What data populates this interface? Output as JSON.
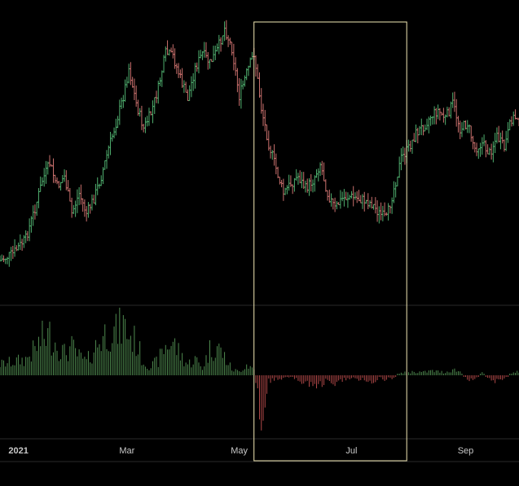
{
  "chart_data": {
    "type": "ohlc",
    "x_axis": {
      "ticks": [
        {
          "label": "2021",
          "date": "2021-01-01"
        },
        {
          "label": "Mar",
          "date": "2021-03-01"
        },
        {
          "label": "May",
          "date": "2021-05-01"
        },
        {
          "label": "Jul",
          "date": "2021-07-01"
        },
        {
          "label": "Sep",
          "date": "2021-09-01"
        }
      ],
      "range": [
        "2020-12-22",
        "2021-09-30"
      ]
    },
    "highlight": {
      "start": "2021-05-09",
      "end": "2021-07-31"
    },
    "price_series": [
      {
        "date": "2020-12-22",
        "v": 252
      },
      {
        "date": "2020-12-29",
        "v": 245
      },
      {
        "date": "2021-01-05",
        "v": 230
      },
      {
        "date": "2021-01-10",
        "v": 200
      },
      {
        "date": "2021-01-14",
        "v": 172
      },
      {
        "date": "2021-01-18",
        "v": 155
      },
      {
        "date": "2021-01-22",
        "v": 178
      },
      {
        "date": "2021-01-26",
        "v": 168
      },
      {
        "date": "2021-01-30",
        "v": 205
      },
      {
        "date": "2021-02-03",
        "v": 185
      },
      {
        "date": "2021-02-07",
        "v": 205
      },
      {
        "date": "2021-02-11",
        "v": 190
      },
      {
        "date": "2021-02-15",
        "v": 168
      },
      {
        "date": "2021-02-19",
        "v": 140
      },
      {
        "date": "2021-02-23",
        "v": 115
      },
      {
        "date": "2021-02-27",
        "v": 88
      },
      {
        "date": "2021-03-02",
        "v": 60
      },
      {
        "date": "2021-03-06",
        "v": 95
      },
      {
        "date": "2021-03-10",
        "v": 120
      },
      {
        "date": "2021-03-14",
        "v": 105
      },
      {
        "date": "2021-03-18",
        "v": 80
      },
      {
        "date": "2021-03-22",
        "v": 45
      },
      {
        "date": "2021-03-26",
        "v": 48
      },
      {
        "date": "2021-03-30",
        "v": 70
      },
      {
        "date": "2021-04-03",
        "v": 90
      },
      {
        "date": "2021-04-07",
        "v": 60
      },
      {
        "date": "2021-04-11",
        "v": 45
      },
      {
        "date": "2021-04-15",
        "v": 55
      },
      {
        "date": "2021-04-19",
        "v": 42
      },
      {
        "date": "2021-04-23",
        "v": 20
      },
      {
        "date": "2021-04-27",
        "v": 40
      },
      {
        "date": "2021-05-01",
        "v": 88
      },
      {
        "date": "2021-05-05",
        "v": 65
      },
      {
        "date": "2021-05-09",
        "v": 45
      },
      {
        "date": "2021-05-13",
        "v": 100
      },
      {
        "date": "2021-05-17",
        "v": 135
      },
      {
        "date": "2021-05-21",
        "v": 160
      },
      {
        "date": "2021-05-25",
        "v": 185
      },
      {
        "date": "2021-05-29",
        "v": 175
      },
      {
        "date": "2021-06-02",
        "v": 168
      },
      {
        "date": "2021-06-06",
        "v": 180
      },
      {
        "date": "2021-06-10",
        "v": 172
      },
      {
        "date": "2021-06-14",
        "v": 155
      },
      {
        "date": "2021-06-18",
        "v": 185
      },
      {
        "date": "2021-06-22",
        "v": 200
      },
      {
        "date": "2021-06-26",
        "v": 190
      },
      {
        "date": "2021-06-30",
        "v": 188
      },
      {
        "date": "2021-07-04",
        "v": 190
      },
      {
        "date": "2021-07-08",
        "v": 192
      },
      {
        "date": "2021-07-12",
        "v": 195
      },
      {
        "date": "2021-07-16",
        "v": 205
      },
      {
        "date": "2021-07-20",
        "v": 210
      },
      {
        "date": "2021-07-24",
        "v": 180
      },
      {
        "date": "2021-07-28",
        "v": 150
      },
      {
        "date": "2021-08-01",
        "v": 140
      },
      {
        "date": "2021-08-05",
        "v": 125
      },
      {
        "date": "2021-08-09",
        "v": 118
      },
      {
        "date": "2021-08-13",
        "v": 108
      },
      {
        "date": "2021-08-17",
        "v": 102
      },
      {
        "date": "2021-08-21",
        "v": 110
      },
      {
        "date": "2021-08-25",
        "v": 95
      },
      {
        "date": "2021-08-29",
        "v": 120
      },
      {
        "date": "2021-09-02",
        "v": 115
      },
      {
        "date": "2021-09-06",
        "v": 140
      },
      {
        "date": "2021-09-10",
        "v": 135
      },
      {
        "date": "2021-09-14",
        "v": 145
      },
      {
        "date": "2021-09-18",
        "v": 128
      },
      {
        "date": "2021-09-22",
        "v": 140
      },
      {
        "date": "2021-09-26",
        "v": 110
      },
      {
        "date": "2021-09-30",
        "v": 108
      }
    ],
    "volume_series": [
      {
        "date": "2020-12-22",
        "v": 15
      },
      {
        "date": "2020-12-29",
        "v": 18
      },
      {
        "date": "2021-01-05",
        "v": 22
      },
      {
        "date": "2021-01-10",
        "v": 35
      },
      {
        "date": "2021-01-14",
        "v": 50
      },
      {
        "date": "2021-01-18",
        "v": 55
      },
      {
        "date": "2021-01-22",
        "v": 42
      },
      {
        "date": "2021-01-26",
        "v": 30
      },
      {
        "date": "2021-01-30",
        "v": 38
      },
      {
        "date": "2021-02-03",
        "v": 25
      },
      {
        "date": "2021-02-07",
        "v": 18
      },
      {
        "date": "2021-02-11",
        "v": 35
      },
      {
        "date": "2021-02-15",
        "v": 50
      },
      {
        "date": "2021-02-19",
        "v": 62
      },
      {
        "date": "2021-02-23",
        "v": 58
      },
      {
        "date": "2021-02-27",
        "v": 68
      },
      {
        "date": "2021-03-02",
        "v": 55
      },
      {
        "date": "2021-03-06",
        "v": 45
      },
      {
        "date": "2021-03-10",
        "v": 18
      },
      {
        "date": "2021-03-14",
        "v": 12
      },
      {
        "date": "2021-03-18",
        "v": 20
      },
      {
        "date": "2021-03-22",
        "v": 40
      },
      {
        "date": "2021-03-26",
        "v": 45
      },
      {
        "date": "2021-03-30",
        "v": 28
      },
      {
        "date": "2021-04-03",
        "v": 15
      },
      {
        "date": "2021-04-07",
        "v": 22
      },
      {
        "date": "2021-04-11",
        "v": 10
      },
      {
        "date": "2021-04-15",
        "v": 35
      },
      {
        "date": "2021-04-19",
        "v": 40
      },
      {
        "date": "2021-04-23",
        "v": 25
      },
      {
        "date": "2021-04-27",
        "v": 8
      },
      {
        "date": "2021-05-01",
        "v": 5
      },
      {
        "date": "2021-05-05",
        "v": 15
      },
      {
        "date": "2021-05-09",
        "v": 8
      },
      {
        "date": "2021-05-13",
        "v": -65
      },
      {
        "date": "2021-05-17",
        "v": -8
      },
      {
        "date": "2021-05-21",
        "v": -5
      },
      {
        "date": "2021-05-25",
        "v": -4
      },
      {
        "date": "2021-05-29",
        "v": -3
      },
      {
        "date": "2021-06-02",
        "v": -6
      },
      {
        "date": "2021-06-06",
        "v": -10
      },
      {
        "date": "2021-06-10",
        "v": -16
      },
      {
        "date": "2021-06-14",
        "v": -12
      },
      {
        "date": "2021-06-18",
        "v": -8
      },
      {
        "date": "2021-06-22",
        "v": -14
      },
      {
        "date": "2021-06-26",
        "v": -6
      },
      {
        "date": "2021-06-30",
        "v": -4
      },
      {
        "date": "2021-07-04",
        "v": -7
      },
      {
        "date": "2021-07-08",
        "v": -5
      },
      {
        "date": "2021-07-12",
        "v": -9
      },
      {
        "date": "2021-07-16",
        "v": -4
      },
      {
        "date": "2021-07-20",
        "v": -6
      },
      {
        "date": "2021-07-24",
        "v": -3
      },
      {
        "date": "2021-07-28",
        "v": 3
      },
      {
        "date": "2021-08-01",
        "v": 4
      },
      {
        "date": "2021-08-05",
        "v": 5
      },
      {
        "date": "2021-08-09",
        "v": 4
      },
      {
        "date": "2021-08-13",
        "v": 6
      },
      {
        "date": "2021-08-17",
        "v": 5
      },
      {
        "date": "2021-08-21",
        "v": 4
      },
      {
        "date": "2021-08-25",
        "v": 8
      },
      {
        "date": "2021-08-29",
        "v": 5
      },
      {
        "date": "2021-09-02",
        "v": -6
      },
      {
        "date": "2021-09-06",
        "v": -4
      },
      {
        "date": "2021-09-10",
        "v": 3
      },
      {
        "date": "2021-09-14",
        "v": -5
      },
      {
        "date": "2021-09-18",
        "v": -8
      },
      {
        "date": "2021-09-22",
        "v": -4
      },
      {
        "date": "2021-09-26",
        "v": 3
      },
      {
        "date": "2021-09-30",
        "v": 5
      }
    ],
    "price_scale": {
      "min": 0,
      "max": 260,
      "inverted": true
    },
    "volume_scale": {
      "min": -70,
      "max": 70
    },
    "colors": {
      "background": "#000000",
      "up": "#4fae6e",
      "down": "#c9706d",
      "volume_up": "#4f8a4f",
      "volume_down": "#b04848",
      "highlight_border": "#f1e7b4",
      "grid": "#2a2a2a",
      "tick_label": "#c8c8c8"
    },
    "grid": false,
    "legend": "none"
  }
}
